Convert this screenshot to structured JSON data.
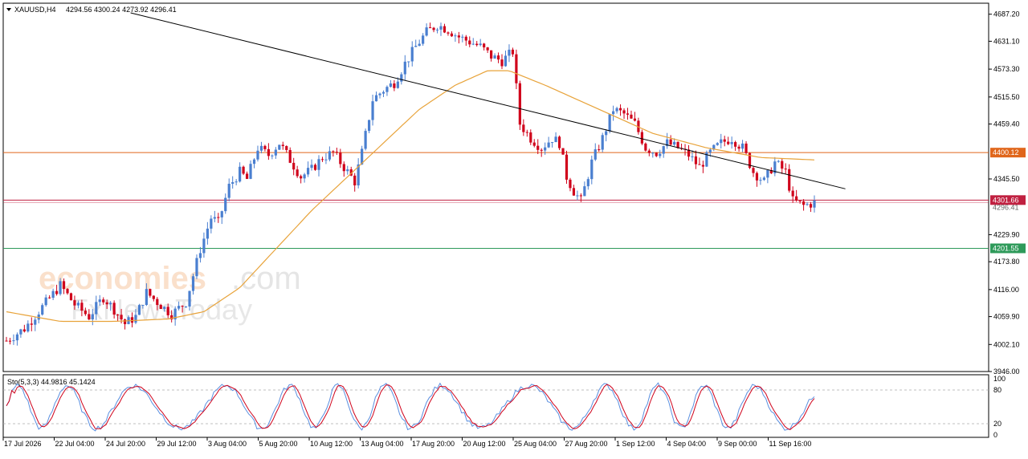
{
  "header": {
    "symbol": "XAUUSD,H4",
    "ohlc": "4294.56 4300.24 4273.92 4296.41",
    "dropdown_icon": "triangle-down-icon"
  },
  "watermark": {
    "brand": "economies",
    "brand_suffix": ".com",
    "sub": "FxNewsToday"
  },
  "colors": {
    "bull": "#4a7fd0",
    "bear": "#d0021b",
    "ma": "#e8a33a",
    "resistance": "#e0661b",
    "current": "#c02040",
    "support": "#2e9a5a",
    "stoch_main": "#5a8fe0",
    "stoch_signal": "#d0021b",
    "trendline": "#000000"
  },
  "chart_data": {
    "type": "candlestick",
    "price_axis": {
      "ticks": [
        "4687.20",
        "4631.10",
        "4573.30",
        "4515.50",
        "4459.40",
        "4345.50",
        "4229.90",
        "4173.80",
        "4116.00",
        "4059.90",
        "4002.10",
        "3946.00"
      ],
      "range": [
        3946,
        4710
      ]
    },
    "time_axis": {
      "labels": [
        "17 Jul 2026",
        "22 Jul 04:00",
        "24 Jul 20:00",
        "29 Jul 12:00",
        "3 Aug 04:00",
        "5 Aug 20:00",
        "10 Aug 12:00",
        "13 Aug 04:00",
        "17 Aug 20:00",
        "20 Aug 12:00",
        "25 Aug 04:00",
        "27 Aug 20:00",
        "1 Sep 12:00",
        "4 Sep 04:00",
        "9 Sep 00:00",
        "11 Sep 16:00"
      ]
    },
    "levels": [
      {
        "price": 4400.12,
        "label": "4400.12",
        "role": "resistance"
      },
      {
        "price": 4301.66,
        "label": "4301.66",
        "role": "current"
      },
      {
        "price": 4296.41,
        "label": "4296.41",
        "role": "last"
      },
      {
        "price": 4201.55,
        "label": "4201.55",
        "role": "support"
      }
    ],
    "trendline": {
      "from": [
        0.17,
        4690
      ],
      "to": [
        0.985,
        4325
      ]
    },
    "candles_close_path": [
      [
        0,
        4010
      ],
      [
        10,
        4035
      ],
      [
        20,
        4080
      ],
      [
        30,
        4125
      ],
      [
        38,
        4085
      ],
      [
        46,
        4060
      ],
      [
        54,
        4100
      ],
      [
        60,
        4075
      ],
      [
        66,
        4045
      ],
      [
        72,
        4060
      ],
      [
        78,
        4110
      ],
      [
        84,
        4090
      ],
      [
        92,
        4065
      ],
      [
        100,
        4090
      ],
      [
        108,
        4200
      ],
      [
        114,
        4265
      ],
      [
        118,
        4255
      ],
      [
        124,
        4330
      ],
      [
        130,
        4360
      ],
      [
        134,
        4345
      ],
      [
        140,
        4410
      ],
      [
        146,
        4395
      ],
      [
        152,
        4420
      ],
      [
        158,
        4385
      ],
      [
        164,
        4350
      ],
      [
        170,
        4365
      ],
      [
        176,
        4390
      ],
      [
        182,
        4400
      ],
      [
        188,
        4370
      ],
      [
        194,
        4340
      ],
      [
        198,
        4400
      ],
      [
        204,
        4510
      ],
      [
        210,
        4530
      ],
      [
        216,
        4545
      ],
      [
        222,
        4585
      ],
      [
        228,
        4620
      ],
      [
        234,
        4650
      ],
      [
        240,
        4665
      ],
      [
        246,
        4655
      ],
      [
        252,
        4640
      ],
      [
        258,
        4630
      ],
      [
        264,
        4620
      ],
      [
        270,
        4600
      ],
      [
        276,
        4590
      ],
      [
        282,
        4610
      ],
      [
        286,
        4460
      ],
      [
        292,
        4430
      ],
      [
        298,
        4410
      ],
      [
        304,
        4430
      ],
      [
        308,
        4420
      ],
      [
        312,
        4350
      ],
      [
        316,
        4320
      ],
      [
        320,
        4300
      ],
      [
        326,
        4380
      ],
      [
        332,
        4430
      ],
      [
        338,
        4490
      ],
      [
        344,
        4480
      ],
      [
        350,
        4460
      ],
      [
        356,
        4410
      ],
      [
        362,
        4400
      ],
      [
        368,
        4420
      ],
      [
        374,
        4410
      ],
      [
        380,
        4395
      ],
      [
        386,
        4370
      ],
      [
        392,
        4400
      ],
      [
        398,
        4420
      ],
      [
        404,
        4430
      ],
      [
        410,
        4410
      ],
      [
        416,
        4360
      ],
      [
        422,
        4340
      ],
      [
        428,
        4380
      ],
      [
        434,
        4360
      ],
      [
        438,
        4300
      ],
      [
        444,
        4290
      ],
      [
        450,
        4296
      ]
    ],
    "ma_path": [
      [
        0,
        4070
      ],
      [
        30,
        4050
      ],
      [
        60,
        4050
      ],
      [
        90,
        4055
      ],
      [
        110,
        4070
      ],
      [
        130,
        4120
      ],
      [
        150,
        4200
      ],
      [
        170,
        4280
      ],
      [
        190,
        4350
      ],
      [
        210,
        4420
      ],
      [
        230,
        4490
      ],
      [
        250,
        4540
      ],
      [
        268,
        4570
      ],
      [
        280,
        4570
      ],
      [
        300,
        4540
      ],
      [
        330,
        4490
      ],
      [
        360,
        4440
      ],
      [
        390,
        4410
      ],
      [
        420,
        4390
      ],
      [
        450,
        4385
      ]
    ],
    "indicator": {
      "label": "Sto(5,3,3) 44.9816 45.1424",
      "ticks": [
        "100",
        "80",
        "20",
        "0"
      ],
      "range": [
        0,
        100
      ],
      "levels": [
        80,
        20
      ]
    }
  }
}
